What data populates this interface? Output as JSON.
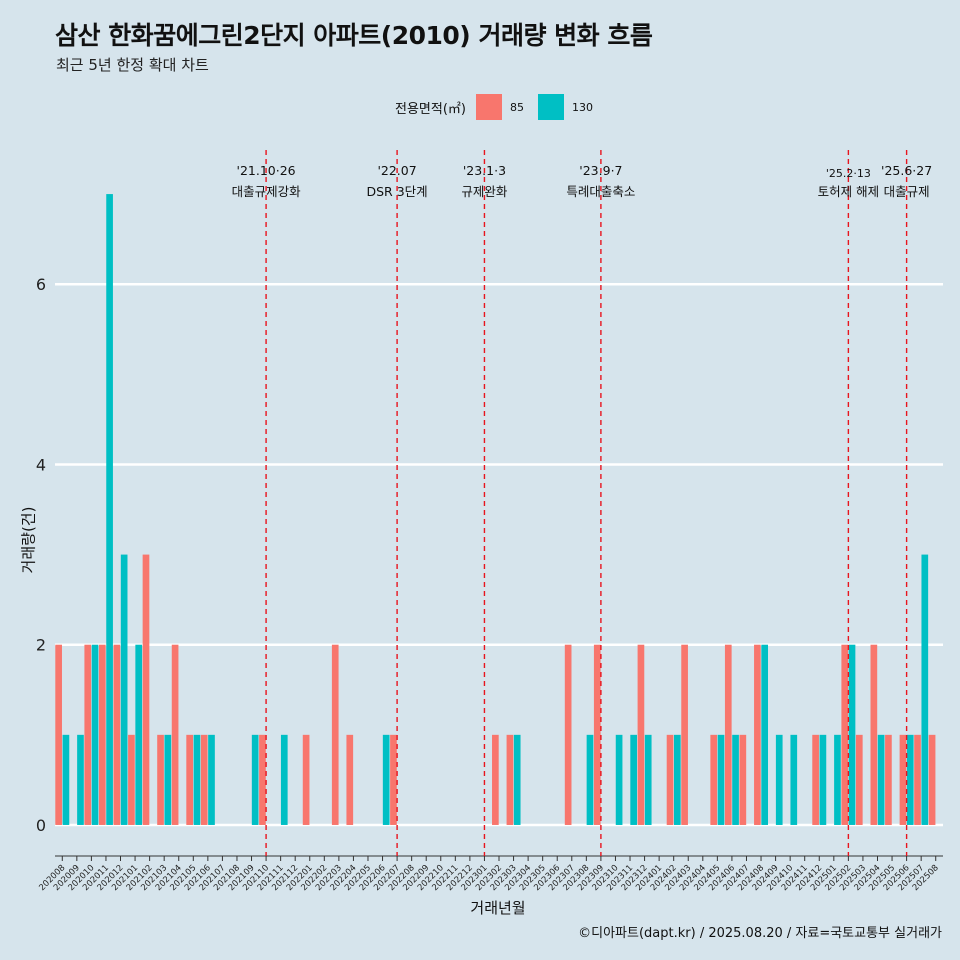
{
  "title": "삼산 한화꿈에그린2단지 아파트(2010) 거래량 변화 흐름",
  "subtitle": "최근 5년 한정 확대 차트",
  "caption": "©디아파트(dapt.kr) / 2025.08.20 / 자료=국토교통부 실거래가",
  "colors": {
    "s85": "#f8766d",
    "s130": "#00bfc4",
    "event_line": "#e8141e",
    "background": "#d6e4ec"
  },
  "chart_data": {
    "type": "bar",
    "xlabel": "거래년월",
    "ylabel": "거래량(건)",
    "legend_title": "전용면적(㎡)",
    "legend_position": "top",
    "grid": true,
    "ylim": [
      -0.3,
      7.6
    ],
    "yticks": [
      0,
      2,
      4,
      6
    ],
    "categories": [
      "202008",
      "202009",
      "202010",
      "202011",
      "202012",
      "202101",
      "202102",
      "202103",
      "202104",
      "202105",
      "202106",
      "202107",
      "202108",
      "202109",
      "202110",
      "202111",
      "202112",
      "202201",
      "202202",
      "202203",
      "202204",
      "202205",
      "202206",
      "202207",
      "202208",
      "202209",
      "202210",
      "202211",
      "202212",
      "202301",
      "202302",
      "202303",
      "202304",
      "202305",
      "202306",
      "202307",
      "202308",
      "202309",
      "202310",
      "202311",
      "202312",
      "202401",
      "202402",
      "202403",
      "202404",
      "202405",
      "202406",
      "202407",
      "202408",
      "202409",
      "202410",
      "202411",
      "202412",
      "202501",
      "202502",
      "202503",
      "202504",
      "202505",
      "202506",
      "202507",
      "202508"
    ],
    "series": [
      {
        "name": "85",
        "values": [
          2,
          0,
          2,
          2,
          2,
          1,
          3,
          1,
          2,
          1,
          1,
          0,
          0,
          0,
          1,
          0,
          0,
          1,
          0,
          2,
          1,
          0,
          0,
          1,
          0,
          0,
          0,
          0,
          0,
          0,
          1,
          1,
          0,
          0,
          0,
          2,
          0,
          2,
          0,
          0,
          2,
          0,
          1,
          2,
          0,
          1,
          2,
          1,
          2,
          0,
          0,
          0,
          1,
          0,
          2,
          1,
          2,
          1,
          1,
          1,
          1
        ]
      },
      {
        "name": "130",
        "values": [
          1,
          1,
          2,
          7,
          3,
          2,
          0,
          1,
          0,
          1,
          1,
          0,
          0,
          1,
          0,
          1,
          0,
          0,
          0,
          0,
          0,
          0,
          1,
          0,
          0,
          0,
          0,
          0,
          0,
          0,
          0,
          1,
          0,
          0,
          0,
          0,
          1,
          0,
          1,
          1,
          1,
          0,
          1,
          0,
          0,
          1,
          1,
          0,
          2,
          1,
          1,
          0,
          1,
          1,
          2,
          0,
          1,
          0,
          1,
          3,
          0
        ]
      }
    ],
    "events": [
      {
        "after": "202110",
        "date": "'21.10·26",
        "label": "대출규제강화"
      },
      {
        "after": "202207",
        "date": "'22.07",
        "label": "DSR 3단계"
      },
      {
        "after": "202301",
        "date": "'23.1·3",
        "label": "규제완화"
      },
      {
        "after": "202309",
        "date": "'23.9·7",
        "label": "특례대출축소"
      },
      {
        "after": "202502",
        "date": "'25.2·13",
        "label": "토허제 해제"
      },
      {
        "after": "202506",
        "date": "'25.6·27",
        "label": "대출규제"
      }
    ]
  }
}
